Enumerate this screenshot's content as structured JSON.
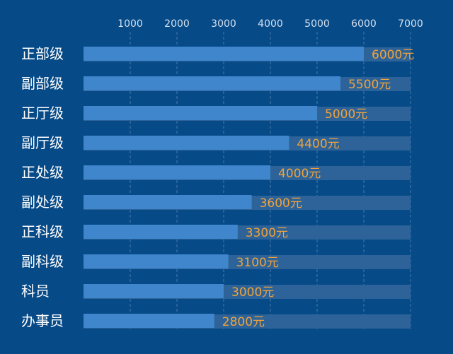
{
  "chart_data": {
    "type": "bar",
    "orientation": "horizontal",
    "categories": [
      "正部级",
      "副部级",
      "正厅级",
      "副厅级",
      "正处级",
      "副处级",
      "正科级",
      "副科级",
      "科员",
      "办事员"
    ],
    "values": [
      6000,
      5500,
      5000,
      4400,
      4000,
      3600,
      3300,
      3100,
      3000,
      2800
    ],
    "data_labels": [
      "6000元",
      "5500元",
      "5000元",
      "4400元",
      "4000元",
      "3600元",
      "3300元",
      "3100元",
      "3000元",
      "2800元"
    ],
    "x_ticks": [
      "1000",
      "2000",
      "3000",
      "4000",
      "5000",
      "6000",
      "7000"
    ],
    "x_tick_values": [
      1000,
      2000,
      3000,
      4000,
      5000,
      6000,
      7000
    ],
    "xlim": [
      0,
      7000
    ],
    "axis_position": "top",
    "grid": true,
    "legend": "none",
    "title": "",
    "xlabel": "",
    "ylabel": "",
    "colors": {
      "background": "#064a88",
      "bar": "#3f86cc",
      "track": "#2d6398",
      "data_label": "#f0a33a",
      "category_label": "#ffffff",
      "tick_label": "#d5e0ee",
      "grid": "#4a79a8"
    }
  }
}
